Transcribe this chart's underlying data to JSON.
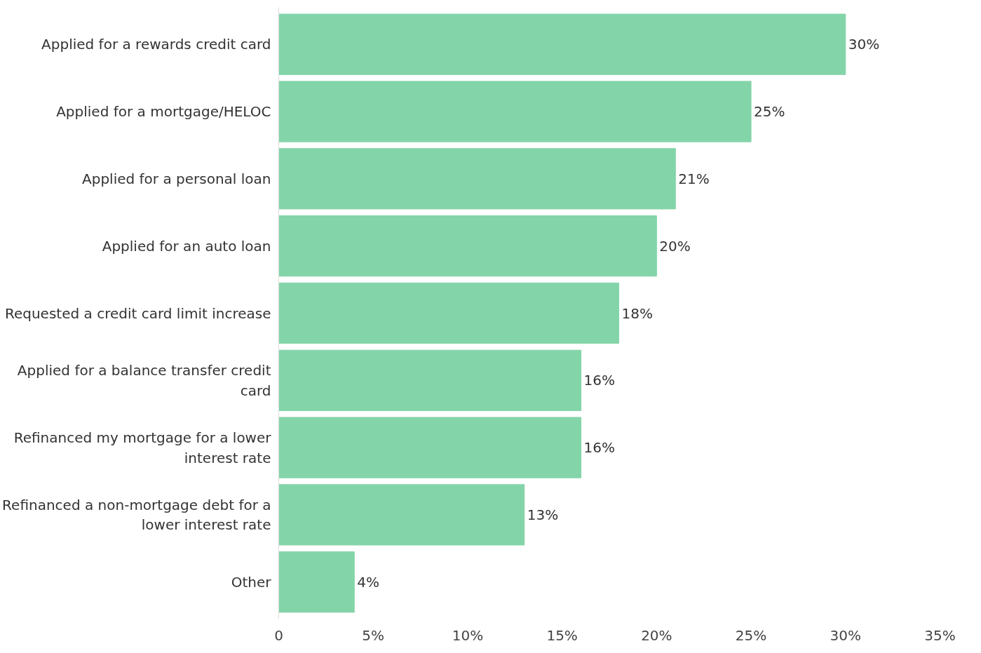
{
  "chart_data": {
    "type": "bar",
    "orientation": "horizontal",
    "categories": [
      "Applied for a rewards credit card",
      "Applied for a mortgage/HELOC",
      "Applied for a personal loan",
      "Applied for an auto loan",
      "Requested a credit card limit increase",
      "Applied for a balance transfer credit card",
      "Refinanced my mortgage for a lower interest rate",
      "Refinanced a non-mortgage debt for a lower interest rate",
      "Other"
    ],
    "values": [
      30,
      25,
      21,
      20,
      18,
      16,
      16,
      13,
      4
    ],
    "color": "#84d4a9",
    "xlim": [
      0,
      35
    ],
    "xticks": [
      {
        "value": 0,
        "label": "0"
      },
      {
        "value": 5,
        "label": "5%"
      },
      {
        "value": 10,
        "label": "10%"
      },
      {
        "value": 15,
        "label": "15%"
      },
      {
        "value": 20,
        "label": "20%"
      },
      {
        "value": 25,
        "label": "25%"
      },
      {
        "value": 30,
        "label": "30%"
      },
      {
        "value": 35,
        "label": "35%"
      }
    ],
    "value_labels": [
      "30%",
      "25%",
      "21%",
      "20%",
      "18%",
      "16%",
      "16%",
      "13%",
      "4%"
    ],
    "grid": false
  }
}
